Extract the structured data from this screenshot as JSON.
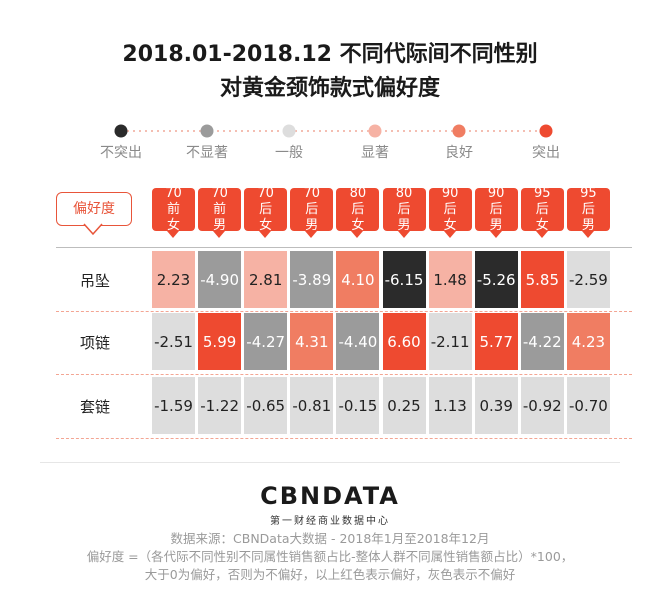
{
  "title_line1": "2018.01-2018.12 不同代际间不同性别",
  "title_line2": "对黄金颈饰款式偏好度",
  "legend": {
    "items": [
      {
        "label": "不突出",
        "color": "#2b2b2b"
      },
      {
        "label": "不显著",
        "color": "#9b9b9b"
      },
      {
        "label": "一般",
        "color": "#dddddd"
      },
      {
        "label": "显著",
        "color": "#f6b2a4"
      },
      {
        "label": "良好",
        "color": "#f07d62"
      },
      {
        "label": "突出",
        "color": "#ee4a30"
      }
    ]
  },
  "pref_label": "偏好度",
  "logo": "CBNDATA",
  "logo_sub": "第一财经商业数据中心",
  "notes": [
    "数据来源：CBNData大数据 - 2018年1月至2018年12月",
    "偏好度 =（各代际不同性别不同属性销售额占比-整体人群不同属性销售额占比）*100，",
    "大于0为偏好，否则为不偏好，以上红色表示偏好，灰色表示不偏好"
  ],
  "chart_data": {
    "type": "heatmap",
    "columns": [
      {
        "line1": "70",
        "line2": "前",
        "line3": "女"
      },
      {
        "line1": "70",
        "line2": "前",
        "line3": "男"
      },
      {
        "line1": "70",
        "line2": "后",
        "line3": "女"
      },
      {
        "line1": "70",
        "line2": "后",
        "line3": "男"
      },
      {
        "line1": "80",
        "line2": "后",
        "line3": "女"
      },
      {
        "line1": "80",
        "line2": "后",
        "line3": "男"
      },
      {
        "line1": "90",
        "line2": "后",
        "line3": "女"
      },
      {
        "line1": "90",
        "line2": "后",
        "line3": "男"
      },
      {
        "line1": "95",
        "line2": "后",
        "line3": "女"
      },
      {
        "line1": "95",
        "line2": "后",
        "line3": "男"
      }
    ],
    "rows": [
      {
        "name": "吊坠",
        "values": [
          2.23,
          -4.9,
          2.81,
          -3.89,
          4.1,
          -6.15,
          1.48,
          -5.26,
          5.85,
          -2.59
        ],
        "labels": [
          "2.23",
          "-4.90",
          "2.81",
          "-3.89",
          "4.10",
          "-6.15",
          "1.48",
          "-5.26",
          "5.85",
          "-2.59"
        ],
        "levels": [
          3,
          1,
          3,
          1,
          4,
          0,
          3,
          0,
          5,
          2
        ]
      },
      {
        "name": "项链",
        "values": [
          -2.51,
          5.99,
          -4.27,
          4.31,
          -4.4,
          6.6,
          -2.11,
          5.77,
          -4.22,
          4.23
        ],
        "labels": [
          "-2.51",
          "5.99",
          "-4.27",
          "4.31",
          "-4.40",
          "6.60",
          "-2.11",
          "5.77",
          "-4.22",
          "4.23"
        ],
        "levels": [
          2,
          5,
          1,
          4,
          1,
          5,
          2,
          5,
          1,
          4
        ]
      },
      {
        "name": "套链",
        "values": [
          -1.59,
          -1.22,
          -0.65,
          -0.81,
          -0.15,
          0.25,
          1.13,
          0.39,
          -0.92,
          -0.7
        ],
        "labels": [
          "-1.59",
          "-1.22",
          "-0.65",
          "-0.81",
          "-0.15",
          "0.25",
          "1.13",
          "0.39",
          "-0.92",
          "-0.70"
        ],
        "levels": [
          2,
          2,
          2,
          2,
          2,
          2,
          2,
          2,
          2,
          2
        ]
      }
    ]
  }
}
